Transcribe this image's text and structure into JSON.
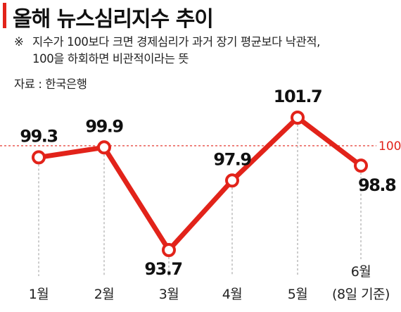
{
  "header": {
    "title": "올해 뉴스심리지수 추이",
    "note_mark": "※",
    "note_line1": "지수가 100보다 크면 경제심리가 과거 장기 평균보다 낙관적,",
    "note_line2": "100을 하회하면 비관적이라는 뜻",
    "source": "자료 : 한국은행"
  },
  "colors": {
    "accent": "#e2231a",
    "line": "#e2231a",
    "marker_fill": "#ffffff",
    "guide": "#999999",
    "text": "#111111"
  },
  "chart_data": {
    "type": "line",
    "categories": [
      "1월",
      "2월",
      "3월",
      "4월",
      "5월",
      "6월"
    ],
    "category_sub": [
      "",
      "",
      "",
      "",
      "",
      "(8일 기준)"
    ],
    "values": [
      99.3,
      99.9,
      93.7,
      97.9,
      101.7,
      98.8
    ],
    "value_labels": [
      "99.3",
      "99.9",
      "93.7",
      "97.9",
      "101.7",
      "98.8"
    ],
    "reference_line": {
      "value": 100,
      "label": "100"
    },
    "ylim": [
      93.7,
      101.7
    ],
    "title": "올해 뉴스심리지수 추이",
    "xlabel": "",
    "ylabel": "",
    "grid": false,
    "legend": "none"
  }
}
